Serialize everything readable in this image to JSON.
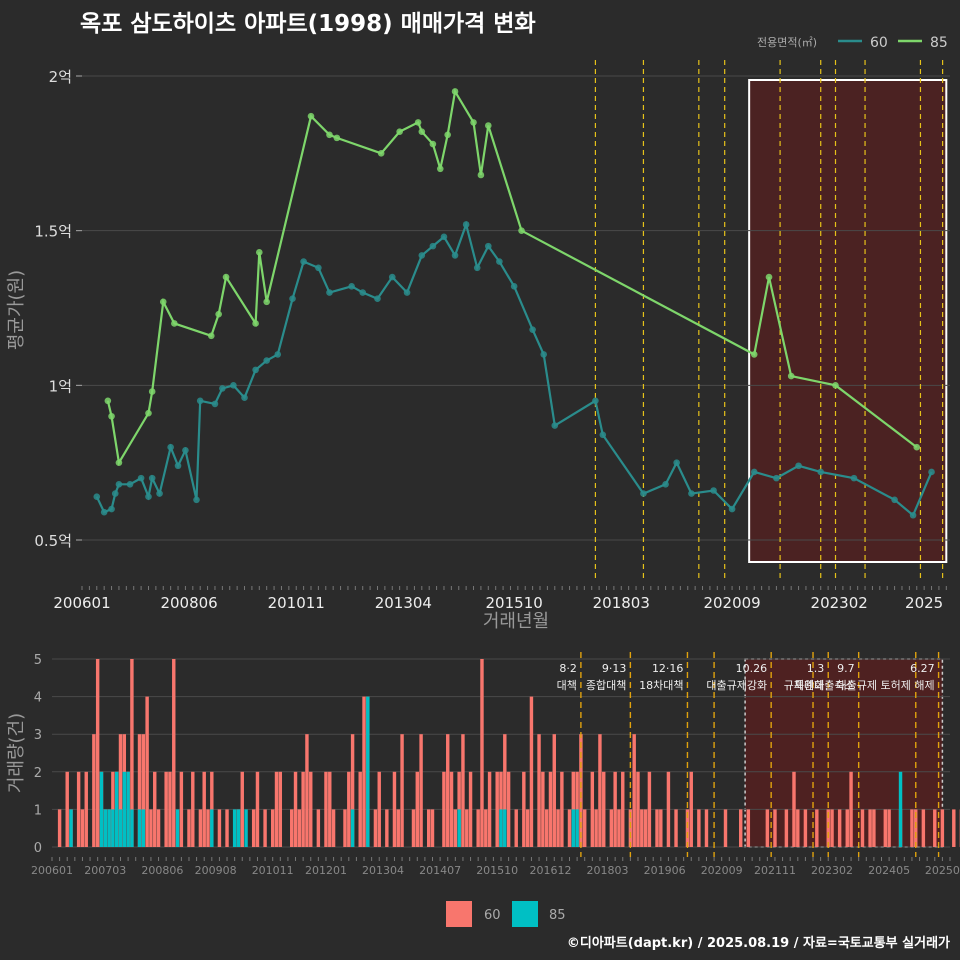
{
  "title": "옥포 삼도하이츠 아파트(1998) 매매가격 변화",
  "footer": "©디아파트(dapt.kr) / 2025.08.19 / 자료=국토교통부 실거래가",
  "colors": {
    "bg": "#2b2b2b",
    "grid": "#4a4a4a",
    "s60": "#2a8c8c",
    "s85": "#7ed66b",
    "b60": "#f8766d",
    "b85": "#00bfc4",
    "policy": "#e6c21a",
    "highlight": "#6b1a1a"
  },
  "chart_data": [
    {
      "type": "line",
      "title": "옥포 삼도하이츠 아파트(1998) 매매가격 변화",
      "xlabel": "거래년월",
      "ylabel": "평균가(원)",
      "legend": {
        "title": "전용면적(㎡)",
        "position": "top-right",
        "entries": [
          "60",
          "85"
        ]
      },
      "x_tick_labels": [
        "200601",
        "200806",
        "201011",
        "201304",
        "201510",
        "201803",
        "202009",
        "202302",
        "2025"
      ],
      "y_tick_labels": [
        "0.5억",
        "1억",
        "1.5억",
        "2억"
      ],
      "ylim": [
        0.35,
        2.02
      ],
      "y_unit": "억",
      "series": [
        {
          "name": "85",
          "points": [
            [
              "2006-08",
              0.95
            ],
            [
              "2006-09",
              0.9
            ],
            [
              "2006-11",
              0.75
            ],
            [
              "2007-07",
              0.91
            ],
            [
              "2007-08",
              0.98
            ],
            [
              "2007-11",
              1.27
            ],
            [
              "2008-02",
              1.2
            ],
            [
              "2008-12",
              1.16
            ],
            [
              "2009-02",
              1.23
            ],
            [
              "2009-04",
              1.35
            ],
            [
              "2009-12",
              1.2
            ],
            [
              "2010-01",
              1.43
            ],
            [
              "2010-03",
              1.27
            ],
            [
              "2011-03",
              1.87
            ],
            [
              "2011-08",
              1.81
            ],
            [
              "2011-10",
              1.8
            ],
            [
              "2012-10",
              1.75
            ],
            [
              "2013-03",
              1.82
            ],
            [
              "2013-08",
              1.85
            ],
            [
              "2013-09",
              1.82
            ],
            [
              "2013-12",
              1.78
            ],
            [
              "2014-02",
              1.7
            ],
            [
              "2014-04",
              1.81
            ],
            [
              "2014-06",
              1.95
            ],
            [
              "2014-11",
              1.85
            ],
            [
              "2015-01",
              1.68
            ],
            [
              "2015-03",
              1.84
            ],
            [
              "2015-12",
              1.5
            ],
            [
              "2021-03",
              1.1
            ],
            [
              "2021-07",
              1.35
            ],
            [
              "2022-01",
              1.03
            ],
            [
              "2023-01",
              1.0
            ],
            [
              "2024-11",
              0.8
            ]
          ]
        },
        {
          "name": "60",
          "points": [
            [
              "2006-05",
              0.64
            ],
            [
              "2006-07",
              0.59
            ],
            [
              "2006-09",
              0.6
            ],
            [
              "2006-10",
              0.65
            ],
            [
              "2006-11",
              0.68
            ],
            [
              "2007-02",
              0.68
            ],
            [
              "2007-05",
              0.7
            ],
            [
              "2007-07",
              0.64
            ],
            [
              "2007-08",
              0.7
            ],
            [
              "2007-10",
              0.65
            ],
            [
              "2008-01",
              0.8
            ],
            [
              "2008-03",
              0.74
            ],
            [
              "2008-05",
              0.79
            ],
            [
              "2008-08",
              0.63
            ],
            [
              "2008-09",
              0.95
            ],
            [
              "2009-01",
              0.94
            ],
            [
              "2009-03",
              0.99
            ],
            [
              "2009-06",
              1.0
            ],
            [
              "2009-09",
              0.96
            ],
            [
              "2009-12",
              1.05
            ],
            [
              "2010-03",
              1.08
            ],
            [
              "2010-06",
              1.1
            ],
            [
              "2010-10",
              1.28
            ],
            [
              "2011-01",
              1.4
            ],
            [
              "2011-05",
              1.38
            ],
            [
              "2011-08",
              1.3
            ],
            [
              "2012-02",
              1.32
            ],
            [
              "2012-05",
              1.3
            ],
            [
              "2012-09",
              1.28
            ],
            [
              "2013-01",
              1.35
            ],
            [
              "2013-05",
              1.3
            ],
            [
              "2013-09",
              1.42
            ],
            [
              "2013-12",
              1.45
            ],
            [
              "2014-03",
              1.48
            ],
            [
              "2014-06",
              1.42
            ],
            [
              "2014-09",
              1.52
            ],
            [
              "2014-12",
              1.38
            ],
            [
              "2015-03",
              1.45
            ],
            [
              "2015-06",
              1.4
            ],
            [
              "2015-10",
              1.32
            ],
            [
              "2016-03",
              1.18
            ],
            [
              "2016-06",
              1.1
            ],
            [
              "2016-09",
              0.87
            ],
            [
              "2017-08",
              0.95
            ],
            [
              "2017-10",
              0.84
            ],
            [
              "2018-09",
              0.65
            ],
            [
              "2019-03",
              0.68
            ],
            [
              "2019-06",
              0.75
            ],
            [
              "2019-10",
              0.65
            ],
            [
              "2020-04",
              0.66
            ],
            [
              "2020-09",
              0.6
            ],
            [
              "2021-03",
              0.72
            ],
            [
              "2021-09",
              0.7
            ],
            [
              "2022-03",
              0.74
            ],
            [
              "2022-09",
              0.72
            ],
            [
              "2023-06",
              0.7
            ],
            [
              "2024-05",
              0.63
            ],
            [
              "2024-10",
              0.58
            ],
            [
              "2025-03",
              0.72
            ]
          ]
        }
      ]
    },
    {
      "type": "bar",
      "xlabel": "",
      "ylabel": "거래량(건)",
      "legend": {
        "position": "bottom",
        "entries": [
          "60",
          "85"
        ]
      },
      "x_tick_labels": [
        "200601",
        "200703",
        "200806",
        "200908",
        "201011",
        "201201",
        "201304",
        "201407",
        "201510",
        "201612",
        "201803",
        "201906",
        "202009",
        "202111",
        "202302",
        "202405",
        "20250"
      ],
      "y_tick_labels": [
        "0",
        "1",
        "2",
        "3",
        "4",
        "5"
      ],
      "ylim": [
        0,
        5.3
      ],
      "start_month": "2006-01",
      "monthly_counts_60": [
        0,
        0,
        1,
        0,
        2,
        1,
        0,
        2,
        1,
        2,
        0,
        3,
        5,
        2,
        1,
        1,
        2,
        2,
        3,
        3,
        2,
        5,
        0,
        3,
        3,
        4,
        1,
        2,
        1,
        0,
        2,
        2,
        5,
        0,
        2,
        0,
        1,
        2,
        0,
        1,
        2,
        1,
        2,
        0,
        1,
        0,
        1,
        0,
        0,
        1,
        2,
        0,
        0,
        1,
        2,
        0,
        1,
        0,
        1,
        2,
        2,
        0,
        0,
        1,
        2,
        1,
        2,
        3,
        2,
        0,
        1,
        0,
        2,
        2,
        1,
        0,
        0,
        1,
        2,
        3,
        0,
        2,
        4,
        4,
        0,
        1,
        2,
        0,
        1,
        0,
        2,
        1,
        3,
        0,
        0,
        1,
        2,
        3,
        0,
        1,
        1,
        0,
        0,
        2,
        3,
        2,
        1,
        2,
        3,
        1,
        2,
        0,
        1,
        5,
        1,
        2,
        0,
        2,
        2,
        3,
        2,
        0,
        1,
        0,
        2,
        1,
        4,
        0,
        3,
        2,
        1,
        2,
        3,
        1,
        2,
        0,
        1,
        2,
        2,
        3,
        1,
        0,
        2,
        1,
        3,
        2,
        0,
        1,
        2,
        1,
        2,
        0,
        1,
        3,
        2,
        1,
        1,
        2,
        0,
        1,
        1,
        0,
        2,
        0,
        1,
        0,
        0,
        1,
        2,
        0,
        1,
        0,
        1,
        0,
        0,
        0,
        0,
        1,
        0,
        0,
        0,
        1,
        0,
        1,
        0,
        0,
        0,
        0,
        1,
        0,
        1,
        0,
        0,
        1,
        0,
        2,
        1,
        0,
        1,
        0,
        0,
        1,
        0,
        0,
        1,
        1,
        0,
        1,
        0,
        1,
        2,
        0,
        0,
        1,
        0,
        1,
        1,
        0,
        0,
        1,
        1,
        0,
        0,
        1,
        0,
        0,
        1,
        1,
        0,
        1,
        0,
        0,
        1,
        0,
        1,
        0,
        0,
        1,
        0,
        1,
        0,
        0,
        1,
        1,
        0,
        0,
        1,
        0,
        1,
        0,
        0,
        0,
        0,
        1,
        0,
        1,
        0,
        1,
        0,
        1,
        1,
        0,
        0,
        1,
        0,
        1,
        0,
        0,
        1,
        0,
        0,
        1,
        0,
        0,
        1,
        0,
        1,
        0,
        0,
        1,
        0,
        1,
        0,
        1,
        0,
        0,
        1,
        1,
        0,
        1
      ],
      "monthly_counts_85": [
        0,
        0,
        0,
        0,
        0,
        1,
        0,
        0,
        0,
        0,
        0,
        0,
        0,
        2,
        1,
        1,
        1,
        2,
        1,
        2,
        2,
        1,
        0,
        1,
        1,
        0,
        0,
        0,
        0,
        0,
        0,
        0,
        0,
        1,
        0,
        0,
        0,
        0,
        0,
        0,
        0,
        0,
        1,
        0,
        0,
        0,
        0,
        0,
        1,
        1,
        0,
        1,
        0,
        0,
        0,
        0,
        0,
        0,
        0,
        0,
        0,
        0,
        0,
        0,
        0,
        0,
        0,
        0,
        0,
        0,
        0,
        0,
        0,
        0,
        0,
        0,
        0,
        0,
        0,
        1,
        0,
        0,
        0,
        4,
        0,
        0,
        0,
        0,
        0,
        0,
        0,
        0,
        0,
        0,
        0,
        0,
        0,
        0,
        0,
        0,
        0,
        0,
        0,
        0,
        0,
        0,
        0,
        1,
        0,
        0,
        0,
        0,
        0,
        0,
        0,
        0,
        0,
        0,
        1,
        1,
        0,
        0,
        0,
        0,
        0,
        0,
        0,
        0,
        0,
        0,
        0,
        0,
        0,
        0,
        0,
        0,
        0,
        1,
        1,
        0,
        0,
        0,
        0,
        0,
        0,
        0,
        0,
        0,
        0,
        0,
        0,
        0,
        0,
        0,
        0,
        0,
        0,
        0,
        0,
        0,
        0,
        0,
        0,
        0,
        0,
        0,
        0,
        0,
        0,
        0,
        0,
        0,
        0,
        0,
        0,
        0,
        0,
        0,
        0,
        0,
        0,
        0,
        0,
        0,
        0,
        0,
        0,
        0,
        0,
        0,
        0,
        0,
        0,
        0,
        0,
        0,
        0,
        0,
        0,
        0,
        0,
        0,
        0,
        0,
        0,
        0,
        0,
        0,
        0,
        0,
        0,
        0,
        0,
        0,
        0,
        0,
        0,
        0,
        0,
        0,
        0,
        0,
        0,
        2,
        0,
        0,
        0,
        0,
        0,
        0,
        0,
        0,
        0,
        0,
        0,
        0,
        0,
        0,
        0,
        0,
        0,
        0,
        0,
        0,
        0,
        0,
        0,
        0,
        0,
        1,
        0,
        0,
        0,
        0,
        0,
        0,
        0,
        0,
        0,
        0,
        0,
        0,
        0,
        0,
        0,
        0,
        0,
        0,
        0,
        0,
        0,
        0,
        0,
        0,
        0,
        0,
        0,
        0,
        0,
        0,
        0,
        0,
        0,
        0,
        0,
        0
      ],
      "policy_events": [
        {
          "date": "2017-08",
          "label": "8·2 대책"
        },
        {
          "date": "2018-09",
          "label": "9·13 종합대책"
        },
        {
          "date": "2019-12",
          "label": "12·16 18차대책"
        },
        {
          "date": "2020-07",
          "label": ""
        },
        {
          "date": "2021-10",
          "label": "10.26 대출규제강화"
        },
        {
          "date": "2022-09",
          "label": ""
        },
        {
          "date": "2023-01",
          "label": "1.3 규제완화"
        },
        {
          "date": "2023-09",
          "label": "9.7 특례대출축소"
        },
        {
          "date": "2024-12",
          "label": ""
        },
        {
          "date": "2025-06",
          "label": "6.27 대출규제 토허제 해제"
        }
      ],
      "highlight_range": [
        "2020-12",
        "2025-07"
      ]
    }
  ]
}
